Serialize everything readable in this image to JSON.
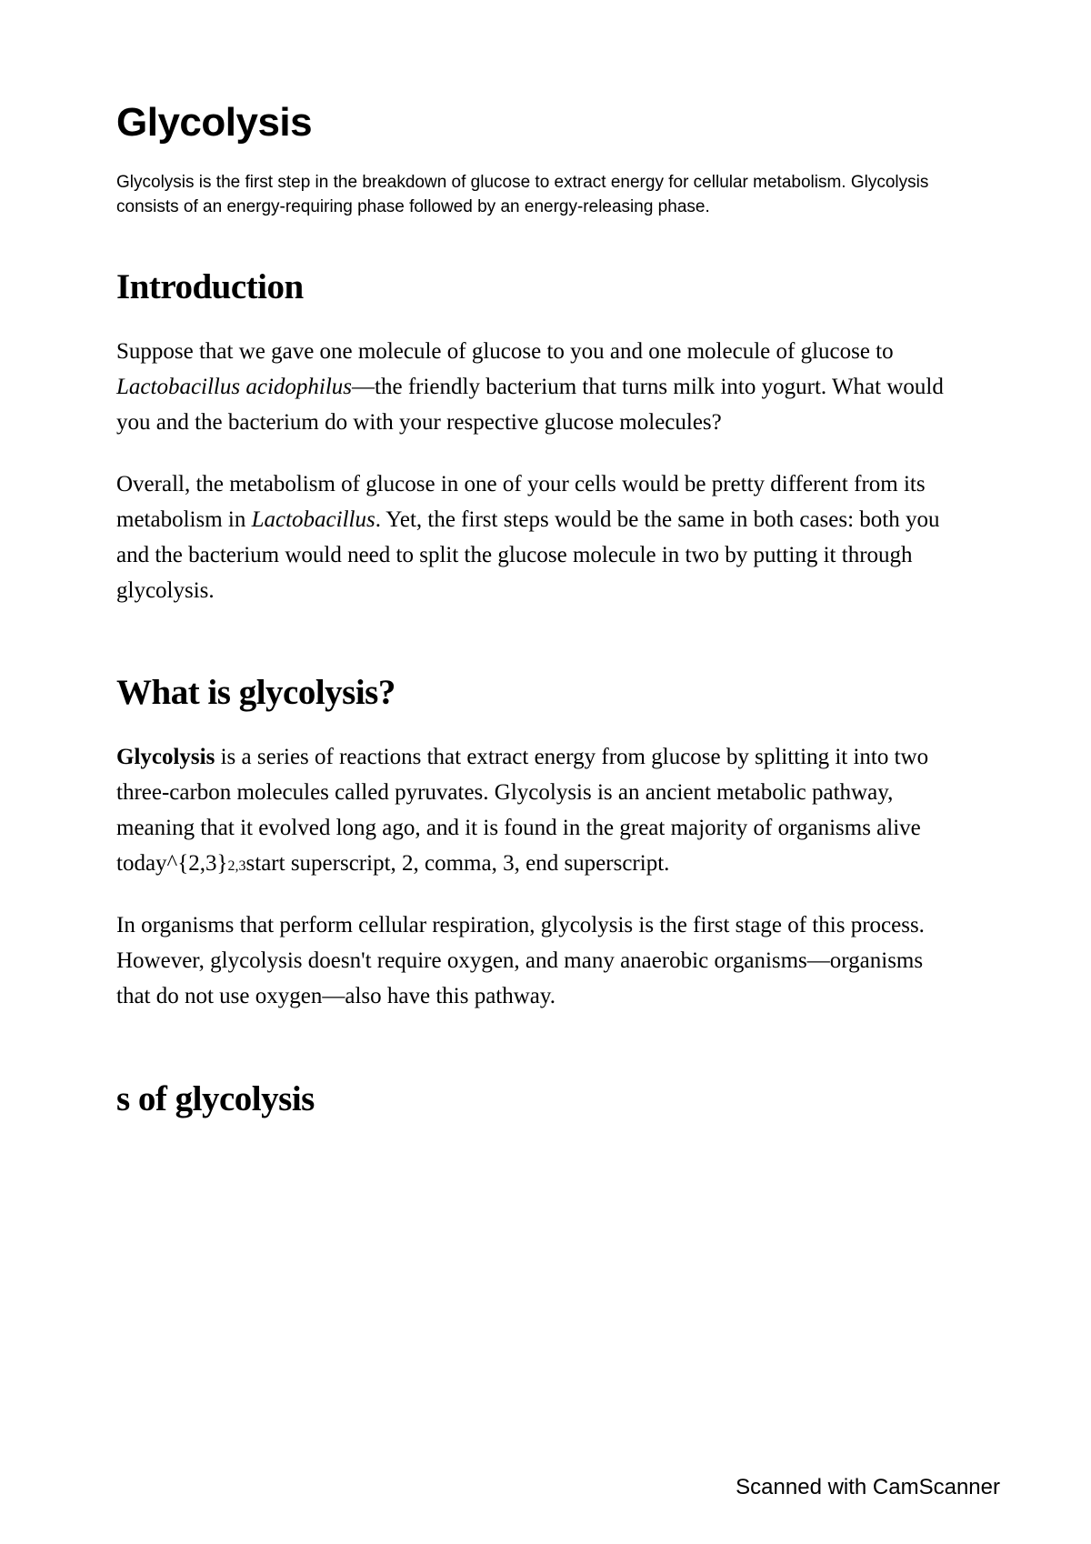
{
  "title": "Glycolysis",
  "summary": "Glycolysis is the first step in the breakdown of glucose to extract energy for cellular metabolism. Glycolysis consists of an energy-requiring phase followed by an energy-releasing phase.",
  "sections": {
    "intro": {
      "heading": "Introduction",
      "p1_a": "Suppose that we gave one molecule of glucose to you and one molecule of glucose to ",
      "p1_em": "Lactobacillus acidophilus",
      "p1_b": "—the friendly bacterium that turns milk into yogurt. What would you and the bacterium do with your respective glucose molecules?",
      "p2_a": "Overall, the metabolism of glucose in one of your cells would be pretty different from its metabolism in ",
      "p2_em": "Lactobacillus",
      "p2_b": ". Yet, the first steps would be the same in both cases: both you and the bacterium would need to split the glucose molecule in two by putting it through glycolysis."
    },
    "what": {
      "heading": "What is glycolysis?",
      "p1_strong": "Glycolysis",
      "p1_a": " is a series of reactions that extract energy from glucose by splitting it into two three-carbon molecules called pyruvates. Glycolysis is an ancient metabolic pathway, meaning that it evolved long ago, and it is found in the great majority of organisms alive today^{2,3}",
      "p1_sub": "2,3",
      "p1_b": "start superscript, 2, comma, 3, end superscript.",
      "p2": "In organisms that perform cellular respiration, glycolysis is the first stage of this process. However, glycolysis doesn't require oxygen, and many anaerobic organisms—organisms that do not use oxygen—also have this pathway."
    },
    "steps": {
      "heading": "s of glycolysis"
    }
  },
  "watermark": "Scanned with CamScanner"
}
